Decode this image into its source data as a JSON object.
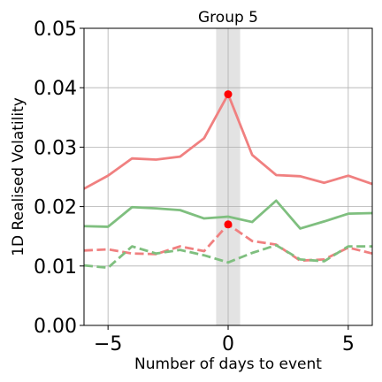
{
  "chart_data": {
    "type": "line",
    "title": "Group 5",
    "xlabel": "Number of days to event",
    "ylabel": "1D Realised Volatility",
    "xlim": [
      -6,
      6
    ],
    "ylim": [
      0,
      0.05
    ],
    "x_ticks": [
      -5,
      0,
      5
    ],
    "x_tick_labels": [
      "−5",
      "0",
      "5"
    ],
    "y_ticks": [
      0.0,
      0.01,
      0.02,
      0.03,
      0.04,
      0.05
    ],
    "y_tick_labels": [
      "0.00",
      "0.01",
      "0.02",
      "0.03",
      "0.04",
      "0.05"
    ],
    "grid": true,
    "event_band": [
      -0.5,
      0.5
    ],
    "event_band_color": "#d9d9d9",
    "x": [
      -6,
      -5,
      -4,
      -3,
      -2,
      -1,
      0,
      1,
      2,
      3,
      4,
      5,
      6
    ],
    "series": [
      {
        "color": "#f08080",
        "style": "solid",
        "values": [
          0.023,
          0.0252,
          0.0281,
          0.0279,
          0.0284,
          0.0315,
          0.0389,
          0.0287,
          0.0253,
          0.0251,
          0.024,
          0.0252,
          0.0238
        ]
      },
      {
        "color": "#7fbf7f",
        "style": "solid",
        "values": [
          0.0167,
          0.0166,
          0.0199,
          0.0197,
          0.0194,
          0.018,
          0.0183,
          0.0174,
          0.021,
          0.0163,
          0.0175,
          0.0188,
          0.0189
        ]
      },
      {
        "color": "#f08080",
        "style": "dashed",
        "values": [
          0.0126,
          0.0128,
          0.0121,
          0.012,
          0.0133,
          0.0125,
          0.017,
          0.0142,
          0.0136,
          0.0109,
          0.0111,
          0.0131,
          0.0121
        ]
      },
      {
        "color": "#7fbf7f",
        "style": "dashed",
        "values": [
          0.0101,
          0.0097,
          0.0133,
          0.0121,
          0.0127,
          0.0118,
          0.0106,
          0.0122,
          0.0135,
          0.0111,
          0.0108,
          0.0133,
          0.0133
        ]
      }
    ],
    "markers": [
      {
        "x": 0,
        "y": 0.0389,
        "color": "#ff0000"
      },
      {
        "x": 0,
        "y": 0.017,
        "color": "#ff0000"
      }
    ]
  }
}
